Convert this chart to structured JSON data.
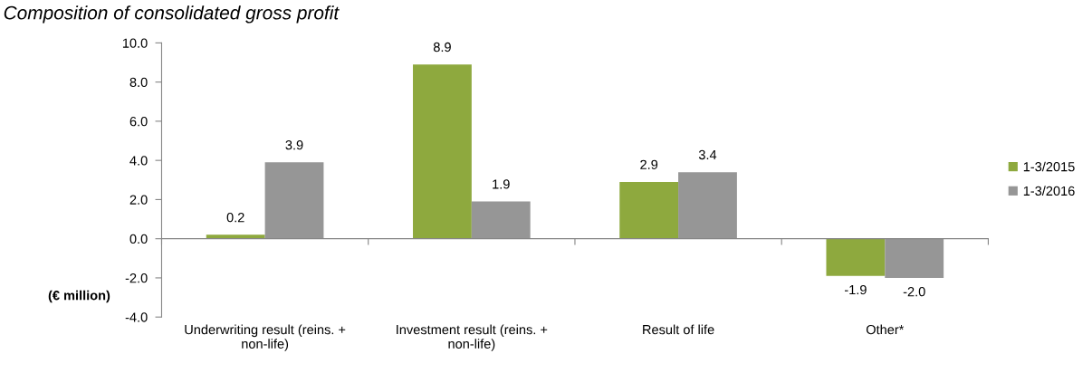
{
  "chart_data": {
    "type": "bar",
    "title": "Composition of consolidated gross profit",
    "ylabel": "(€ million)",
    "categories": [
      "Underwriting result (reins. + non-life)",
      "Investment result (reins. + non-life)",
      "Result of life",
      "Other*"
    ],
    "series": [
      {
        "name": "1-3/2015",
        "color": "#8ea93e",
        "values": [
          0.2,
          8.9,
          2.9,
          -1.9
        ],
        "value_labels": [
          "0.2",
          "8.9",
          "2.9",
          "-1.9"
        ]
      },
      {
        "name": "1-3/2016",
        "color": "#969696",
        "values": [
          3.9,
          1.9,
          3.4,
          -2.0
        ],
        "value_labels": [
          "3.9",
          "1.9",
          "3.4",
          "-2.0"
        ]
      }
    ],
    "ylim": [
      -4,
      10
    ],
    "yticks": [
      {
        "value": -4,
        "label": "-4.0"
      },
      {
        "value": -2,
        "label": "-2.0"
      },
      {
        "value": 0,
        "label": "0.0"
      },
      {
        "value": 2,
        "label": "2.0"
      },
      {
        "value": 4,
        "label": "4.0"
      },
      {
        "value": 6,
        "label": "6.0"
      },
      {
        "value": 8,
        "label": "8.0"
      },
      {
        "value": 10,
        "label": "10.0"
      }
    ],
    "legend": "right"
  }
}
